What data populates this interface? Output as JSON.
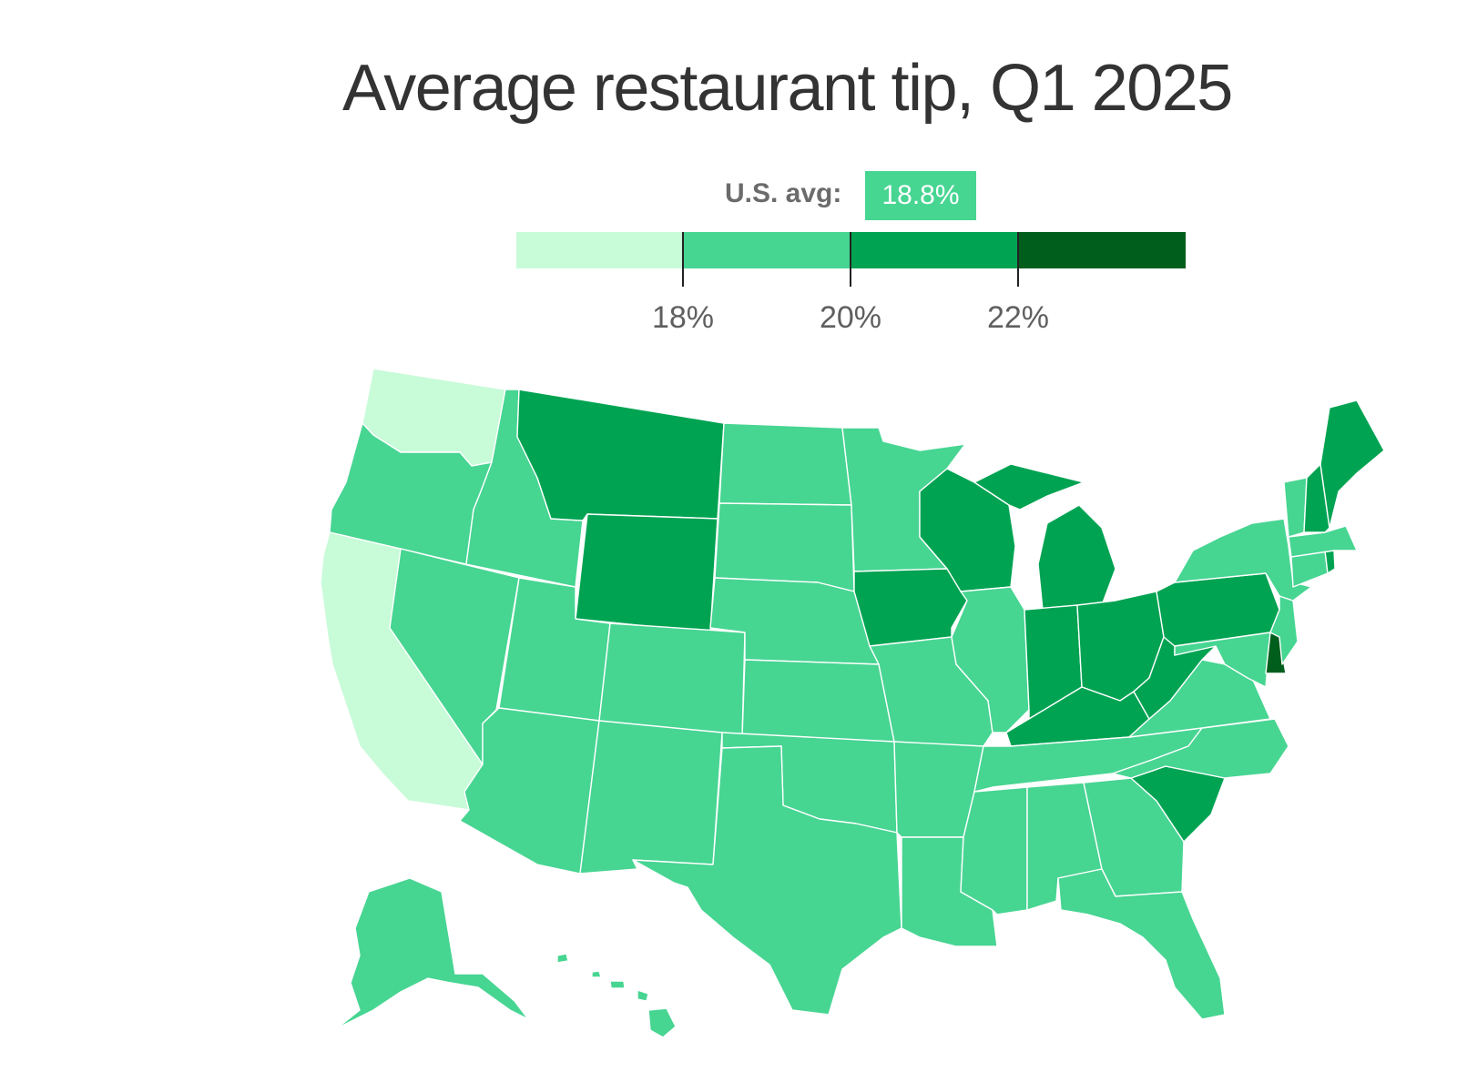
{
  "title": "Average restaurant tip, Q1 2025",
  "avg": {
    "label": "U.S. avg:",
    "value": "18.8%"
  },
  "legend": {
    "bins": [
      {
        "name": "below-18",
        "color": "#c8fbd8"
      },
      {
        "name": "18-20",
        "color": "#47d592"
      },
      {
        "name": "20-22",
        "color": "#00a352"
      },
      {
        "name": "22-plus",
        "color": "#005e1c"
      }
    ],
    "ticks": [
      "18%",
      "20%",
      "22%"
    ]
  },
  "map": {
    "states": {
      "WA": "below-18",
      "CA": "below-18",
      "OR": "18-20",
      "ID": "18-20",
      "NV": "18-20",
      "UT": "18-20",
      "AZ": "18-20",
      "CO": "18-20",
      "NM": "18-20",
      "ND": "18-20",
      "SD": "18-20",
      "NE": "18-20",
      "KS": "18-20",
      "OK": "18-20",
      "TX": "18-20",
      "MN": "18-20",
      "MO": "18-20",
      "AR": "18-20",
      "LA": "18-20",
      "IL": "18-20",
      "MS": "18-20",
      "AL": "18-20",
      "TN": "18-20",
      "GA": "18-20",
      "FL": "18-20",
      "NC": "18-20",
      "VA": "18-20",
      "MD": "18-20",
      "NJ": "18-20",
      "NY": "18-20",
      "VT": "18-20",
      "MA": "18-20",
      "CT": "18-20",
      "AK": "18-20",
      "HI": "18-20",
      "MT": "20-22",
      "WY": "20-22",
      "IA": "20-22",
      "WI": "20-22",
      "MI": "20-22",
      "IN": "20-22",
      "OH": "20-22",
      "KY": "20-22",
      "WV": "20-22",
      "PA": "20-22",
      "SC": "20-22",
      "NH": "20-22",
      "ME": "20-22",
      "RI": "20-22",
      "DE": "22-plus"
    }
  }
}
